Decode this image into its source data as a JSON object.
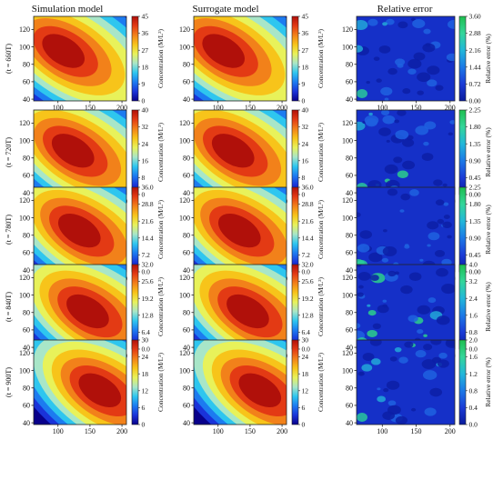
{
  "columns": [
    "Simulation model",
    "Surrogate model",
    "Relative error"
  ],
  "rows": [
    "(t = 660T)",
    "(t = 720T)",
    "(t = 780T)",
    "(t = 840T)",
    "(t = 900T)"
  ],
  "chart_data": {
    "type": "heatmap",
    "x_ticks": [
      "100",
      "150",
      "200"
    ],
    "x_range": [
      62,
      207
    ],
    "y_ticks": [
      "40",
      "60",
      "80",
      "100",
      "120"
    ],
    "y_range": [
      38,
      135
    ],
    "concentration_label": "Concentration (M/L³)",
    "error_label": "Relative error (%)",
    "panels": [
      {
        "row": "(t = 660T)",
        "peak_center": [
          105,
          96
        ],
        "concentration_ticks": [
          "0",
          "9",
          "18",
          "27",
          "36",
          "45"
        ],
        "concentration_max": 45,
        "error_ticks": [
          "0.00",
          "0.72",
          "1.44",
          "2.16",
          "2.88",
          "3.60"
        ],
        "error_max": 3.6
      },
      {
        "row": "(t = 720T)",
        "peak_center": [
          120,
          89
        ],
        "concentration_ticks": [
          "0",
          "8",
          "16",
          "24",
          "32",
          "40"
        ],
        "concentration_max": 40,
        "error_ticks": [
          "0.00",
          "0.45",
          "0.90",
          "1.35",
          "1.80",
          "2.25"
        ],
        "error_max": 2.25
      },
      {
        "row": "(t = 780T)",
        "peak_center": [
          130,
          86
        ],
        "concentration_ticks": [
          "0.0",
          "7.2",
          "14.4",
          "21.6",
          "28.8",
          "36.0"
        ],
        "concentration_max": 36,
        "error_ticks": [
          "0.00",
          "0.45",
          "0.90",
          "1.35",
          "1.80",
          "2.25"
        ],
        "error_max": 2.25
      },
      {
        "row": "(t = 840T)",
        "peak_center": [
          143,
          82
        ],
        "concentration_ticks": [
          "0.0",
          "6.4",
          "12.8",
          "19.2",
          "25.6",
          "32.0"
        ],
        "concentration_max": 32,
        "error_ticks": [
          "0.0",
          "0.8",
          "1.6",
          "2.4",
          "3.2",
          "4.0"
        ],
        "error_max": 4.0
      },
      {
        "row": "(t = 900T)",
        "peak_center": [
          162,
          78
        ],
        "concentration_ticks": [
          "0",
          "6",
          "12",
          "18",
          "24",
          "30"
        ],
        "concentration_max": 30,
        "error_ticks": [
          "0.0",
          "0.4",
          "0.8",
          "1.2",
          "1.6",
          "2.0"
        ],
        "error_max": 2.0
      }
    ]
  }
}
